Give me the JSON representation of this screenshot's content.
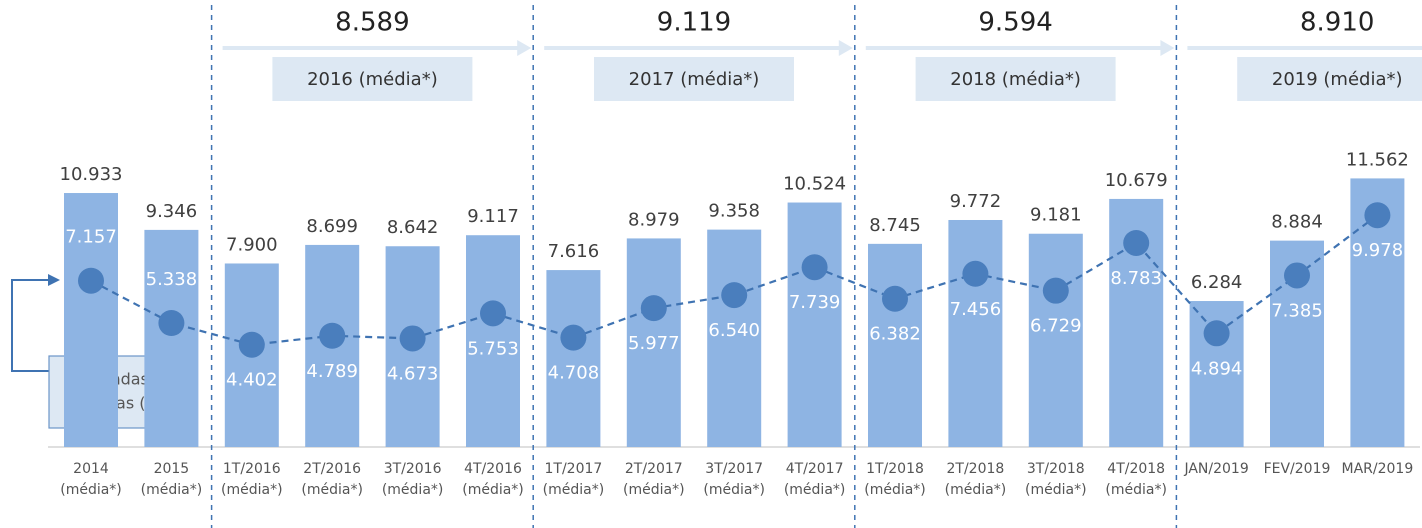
{
  "chart_data": {
    "type": "bar",
    "categories": [
      "2014\n(média*)",
      "2015\n(média*)",
      "1T/2016\n(média*)",
      "2T/2016\n(média*)",
      "3T/2016\n(média*)",
      "4T/2016\n(média*)",
      "1T/2017\n(média*)",
      "2T/2017\n(média*)",
      "3T/2017\n(média*)",
      "4T/2017\n(média*)",
      "1T/2018\n(média*)",
      "2T/2018\n(média*)",
      "3T/2018\n(média*)",
      "4T/2018\n(média*)",
      "JAN/2019",
      "FEV/2019",
      "MAR/2019"
    ],
    "series": [
      {
        "type": "bar",
        "color": "#8eb4e3",
        "values": [
          10933,
          9346,
          7900,
          8699,
          8642,
          9117,
          7616,
          8979,
          9358,
          10524,
          8745,
          9772,
          9181,
          10679,
          6284,
          8884,
          11562
        ],
        "value_labels": [
          "10.933",
          "9.346",
          "7.900",
          "8.699",
          "8.642",
          "9.117",
          "7.616",
          "8.979",
          "9.358",
          "10.524",
          "8.745",
          "9.772",
          "9.181",
          "10.679",
          "6.284",
          "8.884",
          "11.562"
        ]
      },
      {
        "type": "line",
        "color": "#3f73b2",
        "values": [
          7157,
          5338,
          4402,
          4789,
          4673,
          5753,
          4708,
          5977,
          6540,
          7739,
          6382,
          7456,
          6729,
          8783,
          4894,
          7385,
          9978
        ],
        "value_labels": [
          "7.157",
          "5.338",
          "4.402",
          "4.789",
          "4.673",
          "5.753",
          "4.708",
          "5.977",
          "6.540",
          "7.739",
          "6.382",
          "7.456",
          "6.729",
          "8.783",
          "4.894",
          "7.385",
          "9.978"
        ]
      }
    ],
    "groups": [
      {
        "label": "2016 (média*)",
        "value": 8589,
        "value_label": "8.589"
      },
      {
        "label": "2017 (média*)",
        "value": 9119,
        "value_label": "9.119"
      },
      {
        "label": "2018 (média*)",
        "value": 9594,
        "value_label": "9.594"
      },
      {
        "label": "2019 (média*)",
        "value": 8910,
        "value_label": "8.910"
      }
    ],
    "annotation": [
      "vendas",
      "líquidas (**)"
    ]
  }
}
